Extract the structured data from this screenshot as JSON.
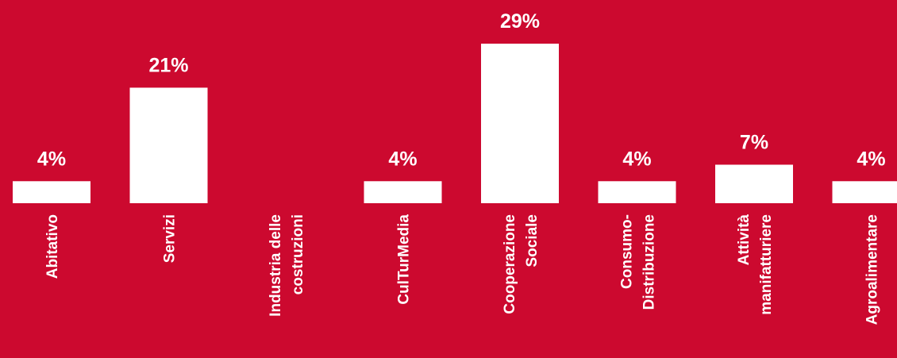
{
  "background_color": "#cc092f",
  "bar_color": "#ffffff",
  "chart_data": {
    "type": "bar",
    "categories": [
      [
        "Abitativo"
      ],
      [
        "Servizi"
      ],
      [
        "Industria delle",
        "costruzioni"
      ],
      [
        "CulTurMedia"
      ],
      [
        "Cooperazione",
        "Sociale"
      ],
      [
        "Consumo-",
        "Distribuzione"
      ],
      [
        "Attività",
        "manifatturiere"
      ],
      [
        "Agroalimentare"
      ]
    ],
    "values": [
      4,
      21,
      0,
      4,
      29,
      4,
      7,
      4
    ],
    "data_labels": [
      "4%",
      "21%",
      "",
      "4%",
      "29%",
      "4%",
      "7%",
      "4%"
    ],
    "unit": "%",
    "ylim": [
      0,
      29
    ],
    "grid": false,
    "legend": "none"
  }
}
